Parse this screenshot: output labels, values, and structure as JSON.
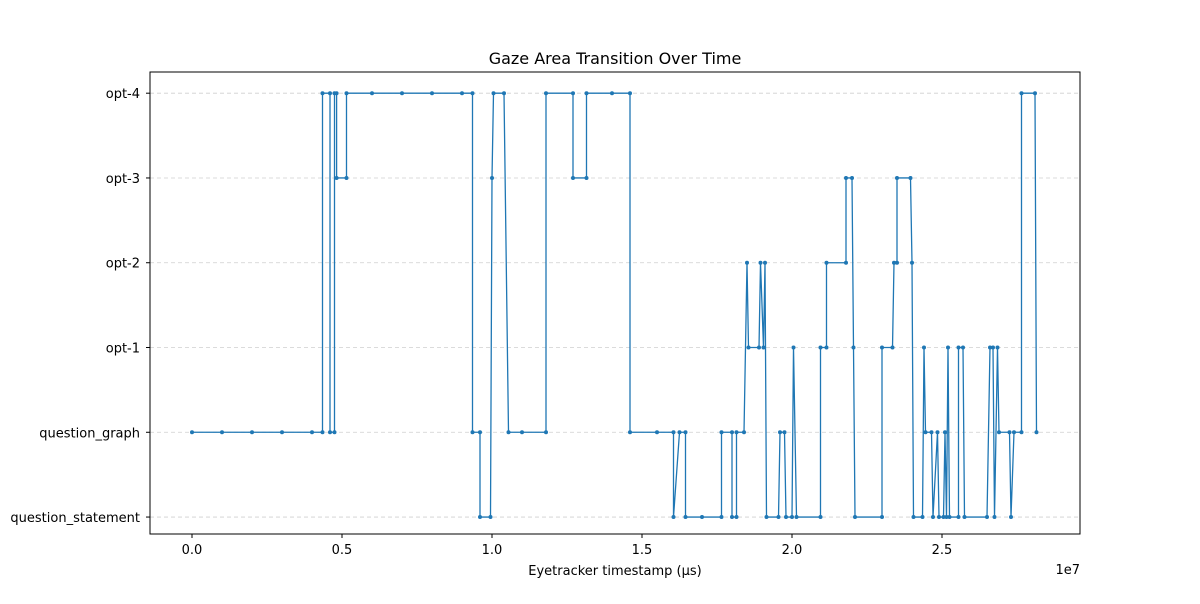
{
  "chart_data": {
    "type": "line",
    "title": "Gaze Area Transition Over Time",
    "xlabel": "Eyetracker timestamp (µs)",
    "ylabel": "",
    "x_offset_label": "1e7",
    "xlim": [
      -1400000,
      29600000
    ],
    "ylim": [
      -0.2,
      5.25
    ],
    "x_ticks": [
      {
        "value": 0,
        "label": "0.0"
      },
      {
        "value": 5000000,
        "label": "0.5"
      },
      {
        "value": 10000000,
        "label": "1.0"
      },
      {
        "value": 15000000,
        "label": "1.5"
      },
      {
        "value": 20000000,
        "label": "2.0"
      },
      {
        "value": 25000000,
        "label": "2.5"
      }
    ],
    "categories": [
      "question_statement",
      "question_graph",
      "opt-1",
      "opt-2",
      "opt-3",
      "opt-4"
    ],
    "grid": {
      "y": true,
      "x": false
    },
    "series": [
      {
        "color": "#1f77b4",
        "marker": "o",
        "points": [
          [
            0,
            1
          ],
          [
            1000000,
            1
          ],
          [
            2000000,
            1
          ],
          [
            3000000,
            1
          ],
          [
            4000000,
            1
          ],
          [
            4350000,
            1
          ],
          [
            4350000,
            5
          ],
          [
            4600000,
            5
          ],
          [
            4600000,
            1
          ],
          [
            4750000,
            1
          ],
          [
            4750000,
            5
          ],
          [
            4820000,
            5
          ],
          [
            4820000,
            4
          ],
          [
            5150000,
            4
          ],
          [
            5150000,
            5
          ],
          [
            6000000,
            5
          ],
          [
            7000000,
            5
          ],
          [
            8000000,
            5
          ],
          [
            9000000,
            5
          ],
          [
            9350000,
            5
          ],
          [
            9350000,
            1
          ],
          [
            9600000,
            1
          ],
          [
            9600000,
            0
          ],
          [
            9950000,
            0
          ],
          [
            10000000,
            4
          ],
          [
            10050000,
            5
          ],
          [
            10400000,
            5
          ],
          [
            10550000,
            1
          ],
          [
            11000000,
            1
          ],
          [
            11800000,
            1
          ],
          [
            11800000,
            5
          ],
          [
            12700000,
            5
          ],
          [
            12700000,
            4
          ],
          [
            13150000,
            4
          ],
          [
            13150000,
            5
          ],
          [
            14000000,
            5
          ],
          [
            14600000,
            5
          ],
          [
            14600000,
            1
          ],
          [
            15500000,
            1
          ],
          [
            16050000,
            1
          ],
          [
            16050000,
            0
          ],
          [
            16250000,
            1
          ],
          [
            16450000,
            1
          ],
          [
            16450000,
            0
          ],
          [
            17000000,
            0
          ],
          [
            17650000,
            0
          ],
          [
            17650000,
            1
          ],
          [
            18000000,
            1
          ],
          [
            18000000,
            0
          ],
          [
            18150000,
            0
          ],
          [
            18150000,
            1
          ],
          [
            18400000,
            1
          ],
          [
            18500000,
            3
          ],
          [
            18550000,
            2
          ],
          [
            18900000,
            2
          ],
          [
            18950000,
            3
          ],
          [
            19050000,
            2
          ],
          [
            19100000,
            3
          ],
          [
            19150000,
            0
          ],
          [
            19550000,
            0
          ],
          [
            19600000,
            1
          ],
          [
            19750000,
            1
          ],
          [
            19800000,
            0
          ],
          [
            20000000,
            0
          ],
          [
            20050000,
            2
          ],
          [
            20150000,
            0
          ],
          [
            20950000,
            0
          ],
          [
            20950000,
            2
          ],
          [
            21150000,
            2
          ],
          [
            21150000,
            3
          ],
          [
            21800000,
            3
          ],
          [
            21800000,
            4
          ],
          [
            22000000,
            4
          ],
          [
            22050000,
            2
          ],
          [
            22100000,
            0
          ],
          [
            23000000,
            0
          ],
          [
            23000000,
            2
          ],
          [
            23350000,
            2
          ],
          [
            23400000,
            3
          ],
          [
            23500000,
            3
          ],
          [
            23500000,
            4
          ],
          [
            23950000,
            4
          ],
          [
            24000000,
            3
          ],
          [
            24050000,
            0
          ],
          [
            24350000,
            0
          ],
          [
            24400000,
            2
          ],
          [
            24450000,
            1
          ],
          [
            24650000,
            1
          ],
          [
            24700000,
            0
          ],
          [
            24850000,
            1
          ],
          [
            24900000,
            0
          ],
          [
            25050000,
            0
          ],
          [
            25100000,
            1
          ],
          [
            25150000,
            0
          ],
          [
            25200000,
            2
          ],
          [
            25250000,
            0
          ],
          [
            25550000,
            0
          ],
          [
            25550000,
            2
          ],
          [
            25700000,
            2
          ],
          [
            25750000,
            0
          ],
          [
            26500000,
            0
          ],
          [
            26600000,
            2
          ],
          [
            26700000,
            2
          ],
          [
            26750000,
            0
          ],
          [
            26850000,
            2
          ],
          [
            26900000,
            1
          ],
          [
            27250000,
            1
          ],
          [
            27300000,
            0
          ],
          [
            27400000,
            1
          ],
          [
            27650000,
            1
          ],
          [
            27650000,
            5
          ],
          [
            28100000,
            5
          ],
          [
            28150000,
            1
          ]
        ]
      }
    ]
  }
}
